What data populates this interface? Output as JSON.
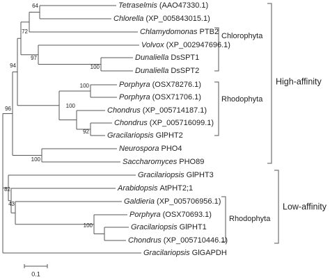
{
  "leaves": [
    {
      "genus": "Tetraselmis",
      "id": "(AAO47330.1)"
    },
    {
      "genus": "Chlorella",
      "id": "(XP_005843015.1)"
    },
    {
      "genus": "Chlamydomonas",
      "id": "PTB2"
    },
    {
      "genus": "Volvox",
      "id": "(XP_002947696.1)"
    },
    {
      "genus": "Dunaliella",
      "id": "DsSPT1"
    },
    {
      "genus": "Dunaliella",
      "id": "DsSPT2"
    },
    {
      "genus": "Porphyra",
      "id": "(OSX78276.1)"
    },
    {
      "genus": "Porphyra",
      "id": "(OSX71706.1)"
    },
    {
      "genus": "Chondrus",
      "id": "(XP_005714187.1)"
    },
    {
      "genus": "Chondrus",
      "id": "(XP_005716099.1)"
    },
    {
      "genus": "Gracilariopsis",
      "id": "GlPHT2"
    },
    {
      "genus": "Neurospora",
      "id": "PHO4"
    },
    {
      "genus": "Saccharomyces",
      "id": "PHO89"
    },
    {
      "genus": "Gracilariopsis",
      "id": "GlPHT3"
    },
    {
      "genus": "Arabidopsis",
      "id": "AtPHT2;1"
    },
    {
      "genus": "Galdieria",
      "id": "(XP_005706956.1)"
    },
    {
      "genus": "Porphyra",
      "id": "(OSX70693.1)"
    },
    {
      "genus": "Gracilariopsis",
      "id": "GlPHT1"
    },
    {
      "genus": "Chondrus",
      "id": "(XP_005710446.1)"
    },
    {
      "genus": "Gracilariopsis",
      "id": "GlGAPDH"
    }
  ],
  "bootstrap": [
    64,
    72,
    97,
    100,
    94,
    100,
    100,
    92,
    96,
    100,
    82,
    43,
    100
  ],
  "clades": [
    "Chlorophyta",
    "Rhodophyta",
    "Rhodophyta"
  ],
  "groups": [
    "High-affinity",
    "Low-affinity"
  ],
  "scale_bar": "0.1"
}
